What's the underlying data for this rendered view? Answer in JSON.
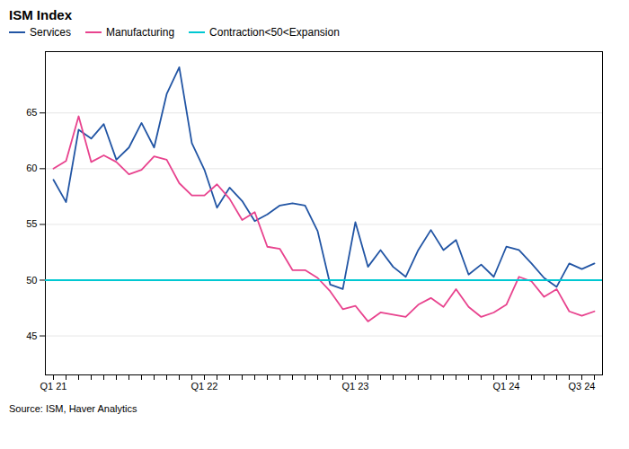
{
  "chart_data": {
    "type": "line",
    "title": "ISM Index",
    "source": "Source: ISM, Haver Analytics",
    "categories": [
      "Q1 21",
      null,
      null,
      null,
      null,
      null,
      null,
      null,
      null,
      null,
      null,
      null,
      "Q1 22",
      null,
      null,
      null,
      null,
      null,
      null,
      null,
      null,
      null,
      null,
      null,
      "Q1 23",
      null,
      null,
      null,
      null,
      null,
      null,
      null,
      null,
      null,
      null,
      null,
      "Q1 24",
      null,
      null,
      null,
      null,
      null,
      "Q3 24",
      null
    ],
    "series": [
      {
        "name": "Services",
        "color": "#2255a4",
        "values": [
          59.0,
          57.0,
          63.5,
          62.7,
          64.0,
          60.8,
          61.9,
          64.1,
          61.9,
          66.7,
          69.1,
          62.3,
          59.9,
          56.5,
          58.3,
          57.1,
          55.3,
          55.9,
          56.7,
          56.9,
          56.7,
          54.4,
          49.6,
          49.2,
          55.2,
          51.2,
          52.7,
          51.2,
          50.3,
          52.7,
          54.5,
          52.7,
          53.6,
          50.5,
          51.4,
          50.3,
          53.0,
          52.7,
          51.5,
          50.2,
          49.4,
          51.5,
          51.0,
          51.5
        ]
      },
      {
        "name": "Manufacturing",
        "color": "#e8438e",
        "values": [
          60.0,
          60.7,
          64.7,
          60.6,
          61.2,
          60.6,
          59.5,
          59.9,
          61.1,
          60.8,
          58.7,
          57.6,
          57.6,
          58.6,
          57.3,
          55.4,
          56.1,
          53.0,
          52.8,
          50.9,
          50.9,
          50.2,
          49.0,
          47.4,
          47.7,
          46.3,
          47.1,
          46.9,
          46.7,
          47.8,
          48.4,
          47.6,
          49.2,
          47.6,
          46.7,
          47.1,
          47.8,
          50.3,
          49.9,
          48.5,
          49.2,
          47.2,
          46.8,
          47.2
        ]
      },
      {
        "name": "Contraction<50<Expansion",
        "color": "#00c8d2",
        "type": "hline",
        "y": 50
      }
    ],
    "ylim": [
      41.5,
      70.5
    ],
    "yticks": [
      45,
      50,
      55,
      60,
      65
    ],
    "grid": "y",
    "legend": "top-left"
  }
}
